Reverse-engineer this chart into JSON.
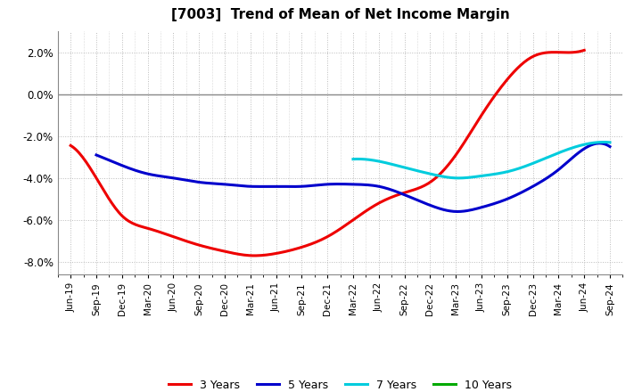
{
  "title": "[7003]  Trend of Mean of Net Income Margin",
  "x_labels": [
    "Jun-19",
    "Sep-19",
    "Dec-19",
    "Mar-20",
    "Jun-20",
    "Sep-20",
    "Dec-20",
    "Mar-21",
    "Jun-21",
    "Sep-21",
    "Dec-21",
    "Mar-22",
    "Jun-22",
    "Sep-22",
    "Dec-22",
    "Mar-23",
    "Jun-23",
    "Sep-23",
    "Dec-23",
    "Mar-24",
    "Jun-24",
    "Sep-24"
  ],
  "ylim": [
    -0.086,
    0.03
  ],
  "yticks": [
    -0.08,
    -0.06,
    -0.04,
    -0.02,
    0.0,
    0.02
  ],
  "series": {
    "3 Years": {
      "color": "#EE0000",
      "data_x": [
        0,
        1,
        2,
        3,
        4,
        5,
        6,
        7,
        8,
        9,
        10,
        11,
        12,
        13,
        14,
        15,
        16,
        17,
        18,
        19,
        20
      ],
      "data_y": [
        -0.0245,
        -0.04,
        -0.058,
        -0.064,
        -0.068,
        -0.072,
        -0.075,
        -0.077,
        -0.076,
        -0.073,
        -0.068,
        -0.06,
        -0.052,
        -0.047,
        -0.042,
        -0.029,
        -0.01,
        0.007,
        0.018,
        0.02,
        0.021
      ]
    },
    "5 Years": {
      "color": "#0000CC",
      "data_x": [
        1,
        2,
        3,
        4,
        5,
        6,
        7,
        8,
        9,
        10,
        11,
        12,
        13,
        14,
        15,
        16,
        17,
        18,
        19,
        20,
        21
      ],
      "data_y": [
        -0.029,
        -0.034,
        -0.038,
        -0.04,
        -0.042,
        -0.043,
        -0.044,
        -0.044,
        -0.044,
        -0.043,
        -0.043,
        -0.044,
        -0.048,
        -0.053,
        -0.056,
        -0.054,
        -0.05,
        -0.044,
        -0.036,
        -0.026,
        -0.025
      ]
    },
    "7 Years": {
      "color": "#00CCDD",
      "data_x": [
        11,
        12,
        13,
        14,
        15,
        16,
        17,
        18,
        19,
        20,
        21
      ],
      "data_y": [
        -0.031,
        -0.032,
        -0.035,
        -0.038,
        -0.04,
        -0.039,
        -0.037,
        -0.033,
        -0.028,
        -0.024,
        -0.023
      ]
    },
    "10 Years": {
      "color": "#00AA00",
      "data_x": [],
      "data_y": []
    }
  },
  "legend": {
    "labels": [
      "3 Years",
      "5 Years",
      "7 Years",
      "10 Years"
    ],
    "colors": [
      "#EE0000",
      "#0000CC",
      "#00CCDD",
      "#00AA00"
    ]
  },
  "background_color": "#FFFFFF",
  "plot_bg_color": "#FFFFFF",
  "grid_color": "#BBBBBB",
  "zero_line_color": "#888888"
}
